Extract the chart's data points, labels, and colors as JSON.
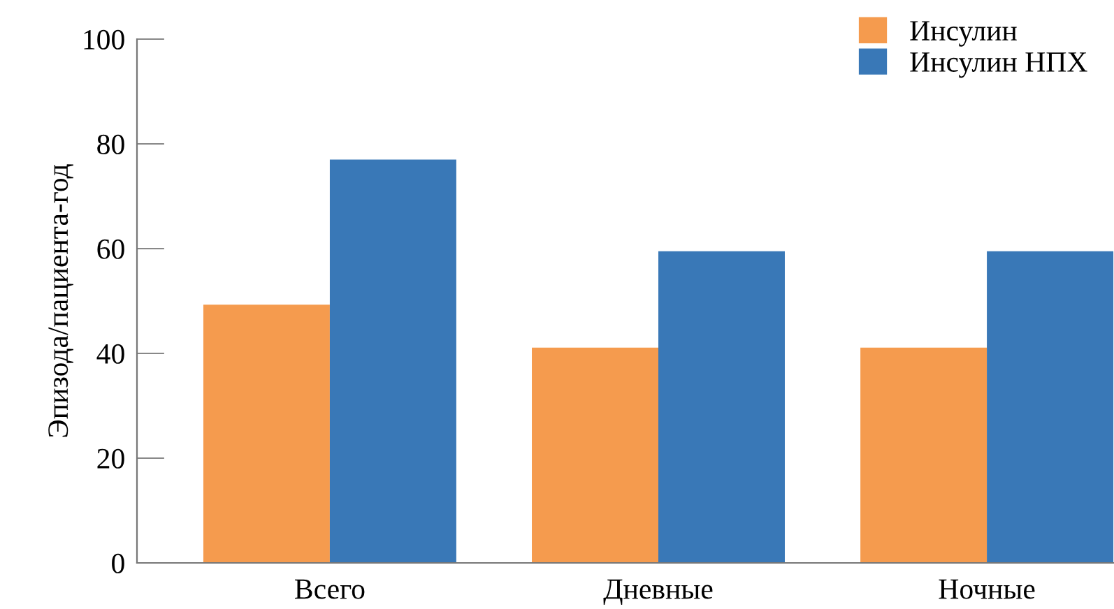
{
  "chart_data": {
    "type": "bar",
    "ylabel": "Эпизода/пациента-год",
    "categories": [
      "Всего",
      "Дневные",
      "Ночные"
    ],
    "series": [
      {
        "name": "Инсулин",
        "color": "#f59b4e",
        "values": [
          49.3,
          41.1,
          41.1
        ]
      },
      {
        "name": "Инсулин НПХ",
        "color": "#3978b7",
        "values": [
          77.0,
          59.5,
          59.5
        ]
      }
    ],
    "ylim": [
      0,
      100
    ],
    "yticks": [
      0,
      20,
      40,
      60,
      80,
      100
    ],
    "grid": false,
    "legend": "top right"
  }
}
